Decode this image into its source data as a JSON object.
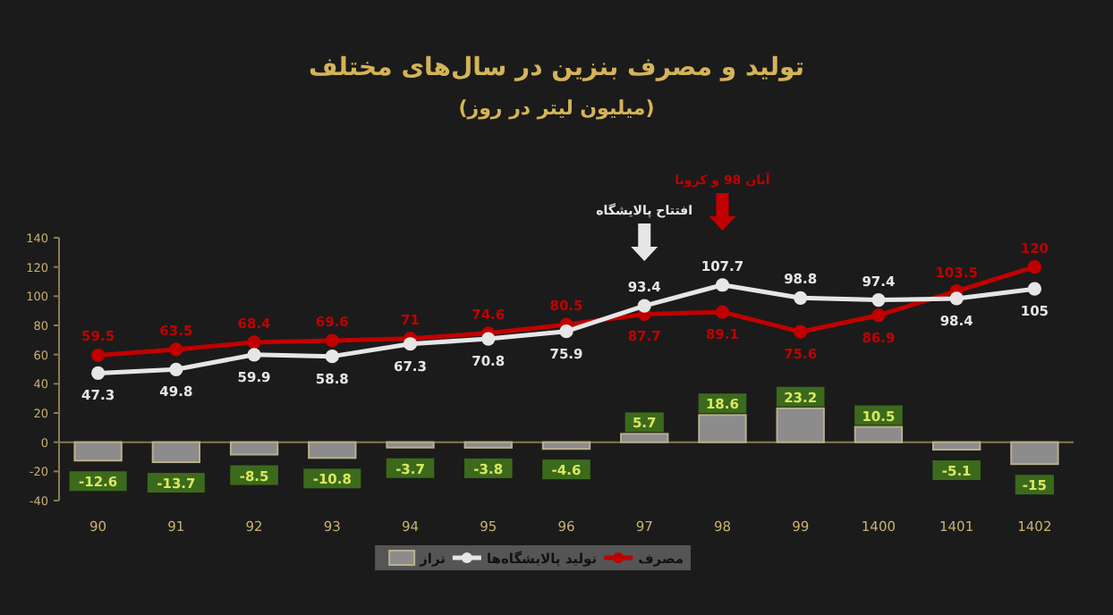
{
  "chart_data": {
    "type": "line",
    "title": "تولید و مصرف بنزین در سال‌های مختلف",
    "subtitle": "(میلیون لیتر در روز)",
    "categories": [
      "90",
      "91",
      "92",
      "93",
      "94",
      "95",
      "96",
      "97",
      "98",
      "99",
      "1400",
      "1401",
      "1402"
    ],
    "series": [
      {
        "name": "مصرف",
        "color": "#c00000",
        "values": [
          59.5,
          63.5,
          68.4,
          69.6,
          71,
          74.6,
          80.5,
          87.7,
          89.1,
          75.6,
          86.9,
          103.5,
          120
        ]
      },
      {
        "name": "تولید پالایشگاه‌ها",
        "color": "#e6e6e6",
        "values": [
          47.3,
          49.8,
          59.9,
          58.8,
          67.3,
          70.8,
          75.9,
          93.4,
          107.7,
          98.8,
          97.4,
          98.4,
          105
        ]
      },
      {
        "name": "تراز",
        "type": "bar",
        "color": "#8c8c8c",
        "values": [
          -12.6,
          -13.7,
          -8.5,
          -10.8,
          -3.7,
          -3.8,
          -4.6,
          5.7,
          18.6,
          23.2,
          10.5,
          -5.1,
          -15
        ]
      }
    ],
    "annotations": [
      "افتتاح پالایشگاه",
      "آبان 98 و کرونا"
    ],
    "ylim": [
      -40,
      140
    ],
    "yticks": [
      -40,
      -20,
      0,
      20,
      40,
      60,
      80,
      100,
      120,
      140
    ],
    "ref_lines": [
      {
        "axis": "y",
        "value": 0,
        "color": "#8a7a50"
      }
    ],
    "data_labels": true,
    "marker": "circle",
    "legend": "bottom",
    "grid": false
  }
}
